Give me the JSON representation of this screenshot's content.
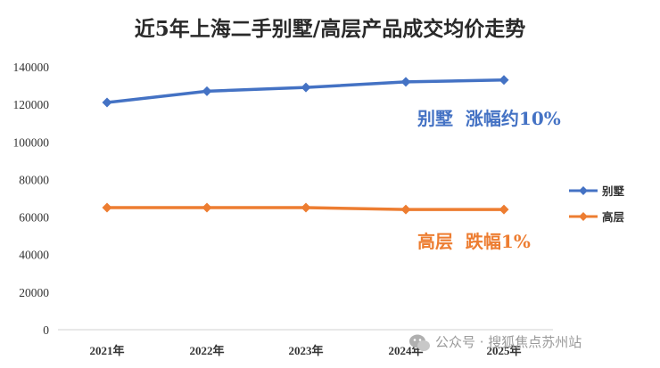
{
  "chart_data": {
    "type": "line",
    "title": "近5年上海二手别墅/高层产品成交均价走势",
    "categories": [
      "2021年",
      "2022年",
      "2023年",
      "2024年",
      "2025年"
    ],
    "ylim": [
      0,
      140000
    ],
    "yticks": [
      "0",
      "20000",
      "40000",
      "60000",
      "80000",
      "100000",
      "120000",
      "140000"
    ],
    "ytick_values": [
      0,
      20000,
      40000,
      60000,
      80000,
      100000,
      120000,
      140000
    ],
    "grid": false,
    "legend_position": "right",
    "series": [
      {
        "name": "别墅",
        "color": "#4472C4",
        "values": [
          121000,
          127000,
          129000,
          132000,
          133000
        ]
      },
      {
        "name": "高层",
        "color": "#ED7D31",
        "values": [
          65000,
          65000,
          65000,
          64000,
          64000
        ]
      }
    ],
    "annotations": [
      {
        "text": "别墅  涨幅约10%",
        "color": "#4472C4"
      },
      {
        "text": "高层  跌幅1%",
        "color": "#ED7D31"
      }
    ]
  },
  "watermark": {
    "text": "公众号 · 搜狐焦点苏州站"
  }
}
